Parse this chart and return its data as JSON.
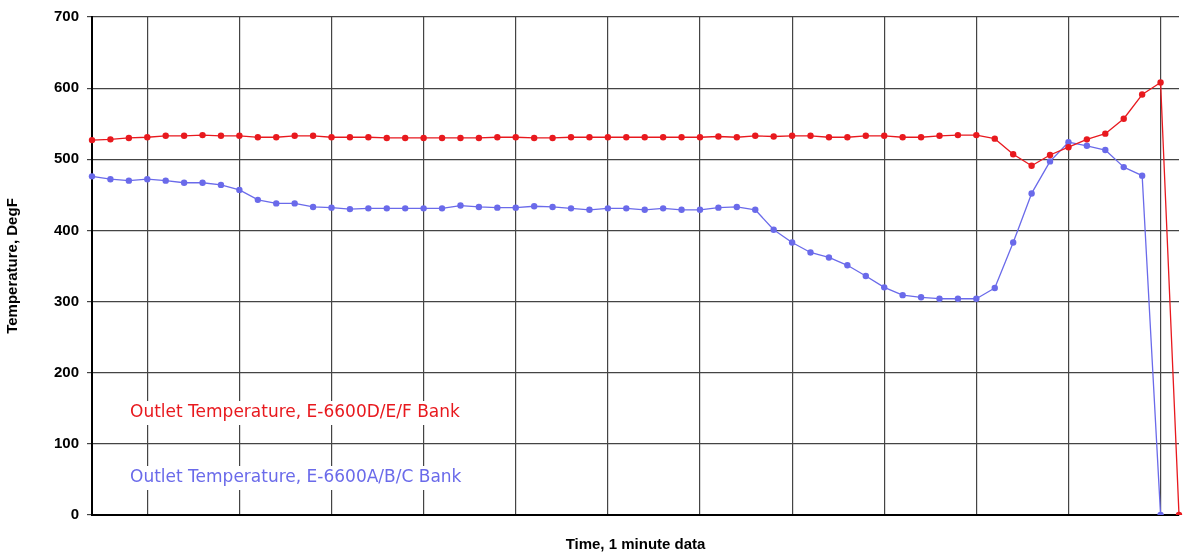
{
  "chart_data": {
    "type": "line",
    "xlabel": "Time, 1 minute data",
    "ylabel": "Temperature, DegF",
    "categories": [
      null,
      null,
      null,
      null,
      null,
      null,
      null,
      null,
      null,
      null,
      null,
      null,
      null,
      null,
      null,
      null,
      null,
      null,
      null,
      null,
      null,
      null,
      null,
      null,
      null,
      null,
      null,
      null,
      null,
      null,
      null,
      null,
      null,
      null,
      null,
      null,
      null,
      null,
      null,
      null,
      null,
      null,
      null,
      null,
      null,
      null,
      null,
      null,
      null,
      null,
      null,
      null,
      null,
      null,
      null,
      null,
      null,
      null,
      null,
      null
    ],
    "series": [
      {
        "name": "Outlet Temperature, E-6600D/E/F Bank",
        "color": "#e8191e",
        "values": [
          527,
          528,
          530,
          531,
          533,
          533,
          534,
          533,
          533,
          531,
          531,
          533,
          533,
          531,
          531,
          531,
          530,
          530,
          530,
          530,
          530,
          530,
          531,
          531,
          530,
          530,
          531,
          531,
          531,
          531,
          531,
          531,
          531,
          531,
          532,
          531,
          533,
          532,
          533,
          533,
          531,
          531,
          533,
          533,
          531,
          531,
          533,
          534,
          534,
          529,
          507,
          491,
          506,
          517,
          528,
          536,
          557,
          591,
          608,
          0
        ]
      },
      {
        "name": "Outlet Temperature, E-6600A/B/C Bank",
        "color": "#6a6aea",
        "values": [
          476,
          472,
          470,
          472,
          470,
          467,
          467,
          464,
          457,
          443,
          438,
          438,
          433,
          432,
          430,
          431,
          431,
          431,
          431,
          431,
          435,
          433,
          432,
          432,
          434,
          433,
          431,
          429,
          431,
          431,
          429,
          431,
          429,
          429,
          432,
          433,
          429,
          401,
          383,
          369,
          362,
          351,
          336,
          320,
          309,
          306,
          304,
          304,
          304,
          319,
          383,
          452,
          497,
          524,
          519,
          513,
          489,
          477,
          0,
          null
        ]
      }
    ],
    "ylim": [
      0,
      700
    ],
    "yticks": [
      0,
      100,
      200,
      300,
      400,
      500,
      600,
      700
    ],
    "grid": true,
    "legend": "bottom left",
    "marker": "circle",
    "tick_labels": "y"
  }
}
